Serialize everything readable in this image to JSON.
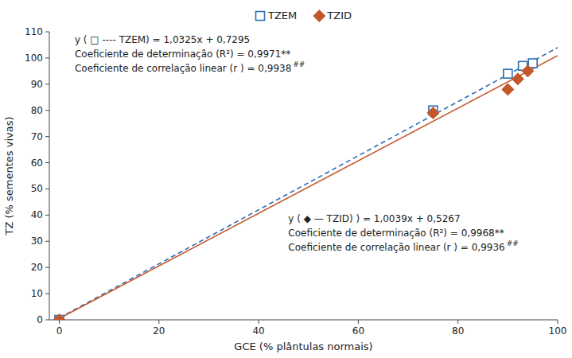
{
  "chart_data": {
    "type": "scatter",
    "xlabel": "GCE (% plântulas normais)",
    "ylabel": "TZ (% sementes vivas)",
    "series": [
      {
        "name": "TZEM",
        "type": "scatter",
        "marker": "square",
        "color": "#2f6db3",
        "x": [
          0,
          75,
          90,
          93,
          95
        ],
        "values": [
          0,
          80,
          94,
          97,
          98
        ]
      },
      {
        "name": "TZID",
        "type": "scatter",
        "marker": "diamond",
        "color": "#c4572a",
        "x": [
          0,
          75,
          90,
          92,
          94
        ],
        "values": [
          0,
          79,
          88,
          92,
          95
        ]
      },
      {
        "type": "line",
        "line_style": "dashed",
        "color": "#2f6db3",
        "x": [
          0,
          100
        ],
        "values": [
          0.7295,
          103.9795
        ]
      },
      {
        "type": "line",
        "line_style": "solid",
        "color": "#c4572a",
        "x": [
          0,
          100
        ],
        "values": [
          0.5267,
          100.9167
        ]
      }
    ],
    "xlim": [
      -2,
      100
    ],
    "xticks": [
      0,
      20,
      40,
      60,
      80,
      100
    ],
    "ylim": [
      0,
      110
    ],
    "yticks": [
      0,
      10,
      20,
      30,
      40,
      50,
      60,
      70,
      80,
      90,
      100,
      110
    ],
    "grid": false,
    "legend": "top",
    "annotations": [
      "y ( □ ----  TZEM) = 1,0325x + 0,7295",
      "Coeficiente de determinação (R²) = 0,9971**",
      "Coeficiente de correlação linear (r ) = 0,9938",
      "##",
      "y ( ◆ — TZID) ) = 1,0039x + 0,5267",
      "Coeficiente de determinação (R²) = 0,9968**",
      "Coeficiente de correlação linear (r ) = 0,9936",
      "##"
    ]
  }
}
